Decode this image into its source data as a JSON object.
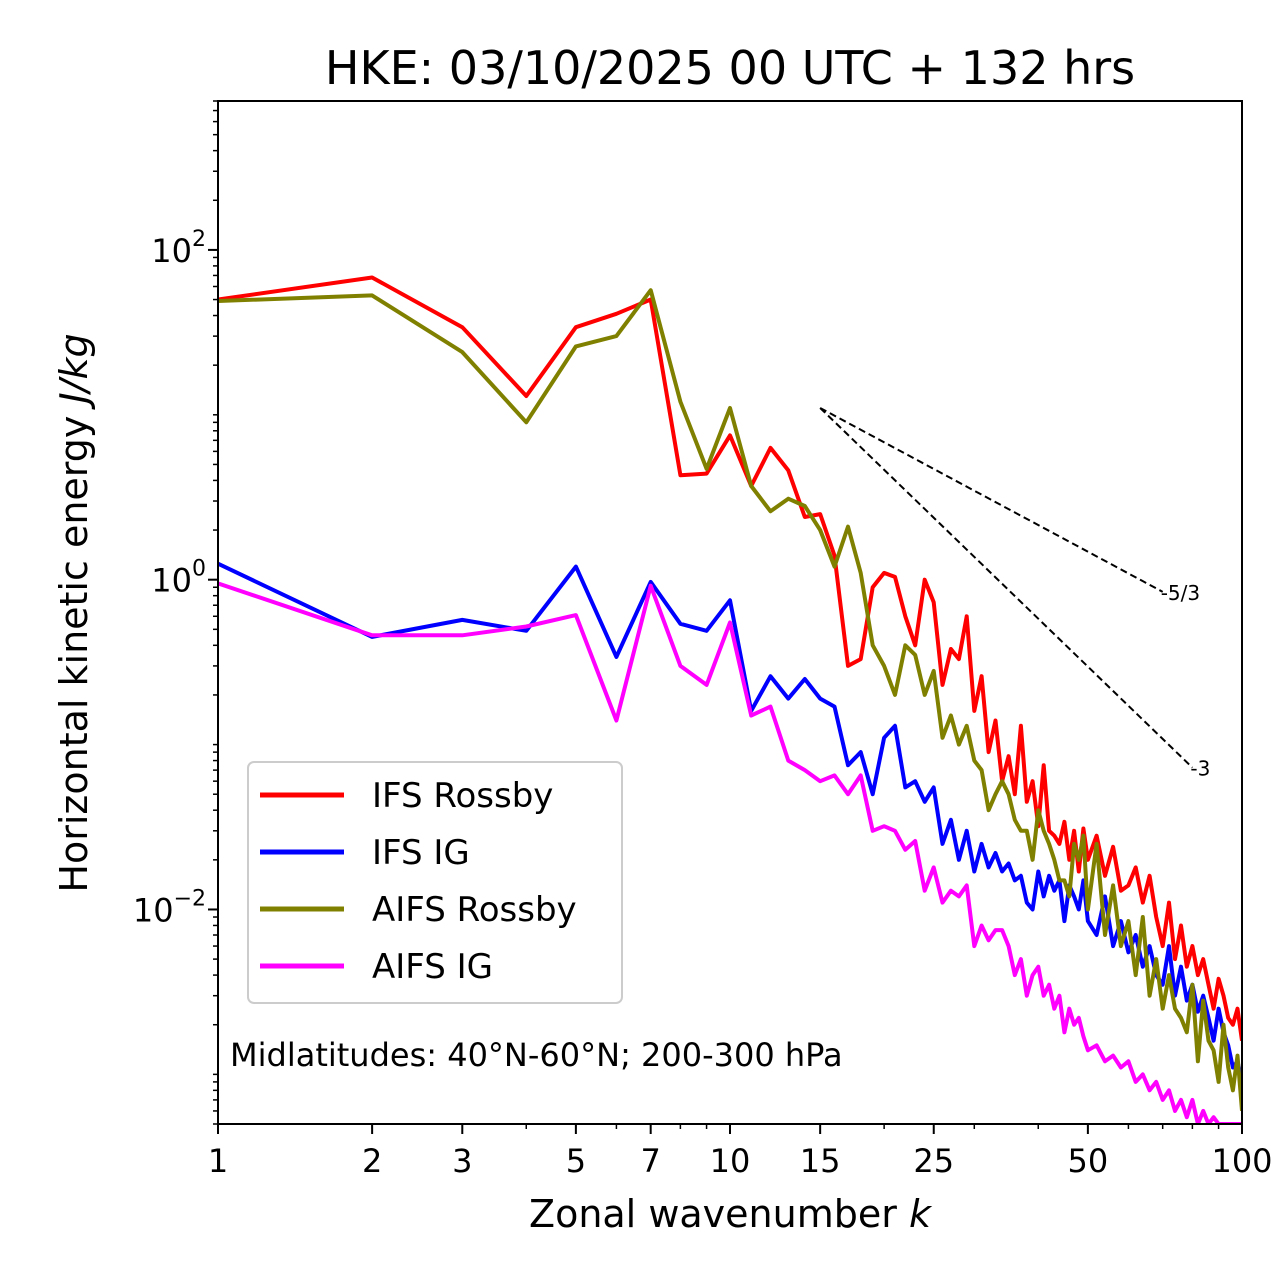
{
  "chart_data": {
    "type": "line",
    "title": "HKE: 03/10/2025 00 UTC + 132 hrs",
    "xlabel": "Zonal wavenumber",
    "xlabel_var": "k",
    "ylabel": "Horizontal kinetic energy",
    "ylabel_unit": "J/kg",
    "xscale": "log",
    "yscale": "log",
    "xlim": [
      1,
      100
    ],
    "ylim": [
      0.0005,
      800
    ],
    "x_ticks": [
      {
        "value": 1,
        "label": "1"
      },
      {
        "value": 2,
        "label": "2"
      },
      {
        "value": 3,
        "label": "3"
      },
      {
        "value": 5,
        "label": "5"
      },
      {
        "value": 7,
        "label": "7"
      },
      {
        "value": 10,
        "label": "10"
      },
      {
        "value": 15,
        "label": "15"
      },
      {
        "value": 25,
        "label": "25"
      },
      {
        "value": 50,
        "label": "50"
      },
      {
        "value": 100,
        "label": "100"
      }
    ],
    "y_ticks": [
      {
        "value": 100,
        "base": "10",
        "exp": "2"
      },
      {
        "value": 1,
        "base": "10",
        "exp": "0"
      },
      {
        "value": 0.01,
        "base": "10",
        "exp": "−2"
      }
    ],
    "annotation": "Midlatitudes: 40°N-60°N; 200-300 hPa",
    "legend": {
      "position": "lower-left",
      "entries": [
        "IFS Rossby",
        "IFS IG",
        "AIFS Rossby",
        "AIFS IG"
      ]
    },
    "reference_lines": [
      {
        "label": "-5/3",
        "slope": -1.6667,
        "x_start": 15,
        "y_start": 11,
        "x_end": 70
      },
      {
        "label": "-3",
        "slope": -3,
        "x_start": 15,
        "y_start": 11,
        "x_end": 80
      }
    ],
    "series": [
      {
        "name": "IFS Rossby",
        "color": "#ff0000",
        "x": [
          1,
          2,
          3,
          4,
          5,
          6,
          7,
          8,
          9,
          10,
          11,
          12,
          13,
          14,
          15,
          16,
          17,
          18,
          19,
          20,
          21,
          22,
          23,
          24,
          25,
          26,
          27,
          28,
          29,
          30,
          31,
          32,
          33,
          34,
          35,
          36,
          37,
          38,
          39,
          40,
          41,
          42,
          43,
          44,
          45,
          46,
          47,
          48,
          49,
          50,
          52,
          54,
          56,
          58,
          60,
          62,
          64,
          66,
          68,
          70,
          72,
          74,
          76,
          78,
          80,
          82,
          84,
          86,
          88,
          90,
          92,
          94,
          96,
          98,
          100
        ],
        "y": [
          50,
          68,
          34,
          13,
          34,
          41,
          50,
          4.3,
          4.4,
          7.5,
          3.7,
          6.3,
          4.6,
          2.4,
          2.5,
          1.4,
          0.3,
          0.33,
          0.9,
          1.1,
          1.04,
          0.6,
          0.4,
          1.0,
          0.73,
          0.23,
          0.38,
          0.33,
          0.6,
          0.16,
          0.26,
          0.09,
          0.14,
          0.06,
          0.085,
          0.05,
          0.13,
          0.045,
          0.06,
          0.032,
          0.075,
          0.03,
          0.028,
          0.025,
          0.034,
          0.02,
          0.03,
          0.017,
          0.031,
          0.02,
          0.028,
          0.016,
          0.024,
          0.013,
          0.014,
          0.018,
          0.011,
          0.016,
          0.009,
          0.006,
          0.011,
          0.005,
          0.008,
          0.0045,
          0.006,
          0.004,
          0.005,
          0.0035,
          0.0025,
          0.0038,
          0.003,
          0.0022,
          0.002,
          0.0025,
          0.0016
        ]
      },
      {
        "name": "IFS IG",
        "color": "#0000ff",
        "x": [
          1,
          2,
          3,
          4,
          5,
          6,
          7,
          8,
          9,
          10,
          11,
          12,
          13,
          14,
          15,
          16,
          17,
          18,
          19,
          20,
          21,
          22,
          23,
          24,
          25,
          26,
          27,
          28,
          29,
          30,
          31,
          32,
          33,
          34,
          35,
          36,
          37,
          38,
          39,
          40,
          41,
          42,
          43,
          44,
          45,
          46,
          47,
          48,
          49,
          50,
          52,
          54,
          56,
          58,
          60,
          62,
          64,
          66,
          68,
          70,
          72,
          74,
          76,
          78,
          80,
          82,
          84,
          86,
          88,
          90,
          92,
          94,
          96,
          98,
          100
        ],
        "y": [
          1.25,
          0.45,
          0.57,
          0.49,
          1.2,
          0.34,
          0.97,
          0.54,
          0.49,
          0.75,
          0.16,
          0.26,
          0.19,
          0.25,
          0.19,
          0.17,
          0.075,
          0.09,
          0.05,
          0.11,
          0.13,
          0.055,
          0.06,
          0.045,
          0.055,
          0.025,
          0.035,
          0.02,
          0.03,
          0.017,
          0.025,
          0.018,
          0.022,
          0.017,
          0.019,
          0.015,
          0.016,
          0.011,
          0.01,
          0.017,
          0.012,
          0.016,
          0.013,
          0.015,
          0.0085,
          0.014,
          0.012,
          0.01,
          0.015,
          0.0085,
          0.007,
          0.012,
          0.006,
          0.0085,
          0.0055,
          0.007,
          0.0045,
          0.006,
          0.004,
          0.0035,
          0.006,
          0.003,
          0.0045,
          0.0028,
          0.0035,
          0.0024,
          0.003,
          0.0022,
          0.0016,
          0.0025,
          0.0018,
          0.0015,
          0.0011,
          0.0012,
          0.0009
        ]
      },
      {
        "name": "AIFS Rossby",
        "color": "#808000",
        "x": [
          1,
          2,
          3,
          4,
          5,
          6,
          7,
          8,
          9,
          10,
          11,
          12,
          13,
          14,
          15,
          16,
          17,
          18,
          19,
          20,
          21,
          22,
          23,
          24,
          25,
          26,
          27,
          28,
          29,
          30,
          31,
          32,
          33,
          34,
          35,
          36,
          37,
          38,
          39,
          40,
          41,
          42,
          43,
          44,
          45,
          46,
          47,
          48,
          49,
          50,
          52,
          54,
          56,
          58,
          60,
          62,
          64,
          66,
          68,
          70,
          72,
          74,
          76,
          78,
          80,
          82,
          84,
          86,
          88,
          90,
          92,
          94,
          96,
          98,
          100
        ],
        "y": [
          49,
          53,
          24,
          9,
          26,
          30,
          57,
          12,
          4.7,
          11,
          3.7,
          2.6,
          3.1,
          2.8,
          2.0,
          1.2,
          2.1,
          1.1,
          0.4,
          0.3,
          0.2,
          0.4,
          0.35,
          0.2,
          0.28,
          0.11,
          0.15,
          0.1,
          0.13,
          0.08,
          0.07,
          0.04,
          0.05,
          0.06,
          0.05,
          0.035,
          0.03,
          0.03,
          0.02,
          0.04,
          0.03,
          0.025,
          0.02,
          0.015,
          0.015,
          0.012,
          0.025,
          0.02,
          0.028,
          0.01,
          0.025,
          0.007,
          0.014,
          0.006,
          0.0085,
          0.004,
          0.009,
          0.003,
          0.005,
          0.0025,
          0.004,
          0.0025,
          0.0022,
          0.0018,
          0.0035,
          0.0012,
          0.0028,
          0.0016,
          0.0014,
          0.0009,
          0.002,
          0.0011,
          0.0008,
          0.0013,
          0.0006
        ]
      },
      {
        "name": "AIFS IG",
        "color": "#ff00ff",
        "x": [
          1,
          2,
          3,
          4,
          5,
          6,
          7,
          8,
          9,
          10,
          11,
          12,
          13,
          14,
          15,
          16,
          17,
          18,
          19,
          20,
          21,
          22,
          23,
          24,
          25,
          26,
          27,
          28,
          29,
          30,
          31,
          32,
          33,
          34,
          35,
          36,
          37,
          38,
          39,
          40,
          41,
          42,
          43,
          44,
          45,
          46,
          47,
          48,
          49,
          50,
          52,
          54,
          56,
          58,
          60,
          62,
          64,
          66,
          68,
          70,
          72,
          74,
          76,
          78,
          80,
          82,
          84,
          86,
          88,
          90,
          92,
          94,
          96,
          98,
          100
        ],
        "y": [
          0.95,
          0.46,
          0.46,
          0.52,
          0.61,
          0.14,
          0.92,
          0.3,
          0.23,
          0.55,
          0.15,
          0.17,
          0.08,
          0.07,
          0.06,
          0.065,
          0.05,
          0.065,
          0.03,
          0.032,
          0.03,
          0.023,
          0.026,
          0.013,
          0.018,
          0.011,
          0.013,
          0.012,
          0.014,
          0.006,
          0.008,
          0.0065,
          0.0075,
          0.0075,
          0.006,
          0.004,
          0.005,
          0.003,
          0.004,
          0.0045,
          0.003,
          0.0035,
          0.0025,
          0.003,
          0.0018,
          0.0025,
          0.002,
          0.0022,
          0.0017,
          0.0014,
          0.0015,
          0.0012,
          0.0013,
          0.0011,
          0.0012,
          0.0009,
          0.001,
          0.0008,
          0.0009,
          0.0007,
          0.0008,
          0.0006,
          0.0007,
          0.00055,
          0.0007,
          0.0005,
          0.0006,
          0.0005,
          0.00055,
          0.0005,
          0.0005,
          0.0005,
          0.0005,
          0.0005,
          0.0005
        ]
      }
    ]
  }
}
